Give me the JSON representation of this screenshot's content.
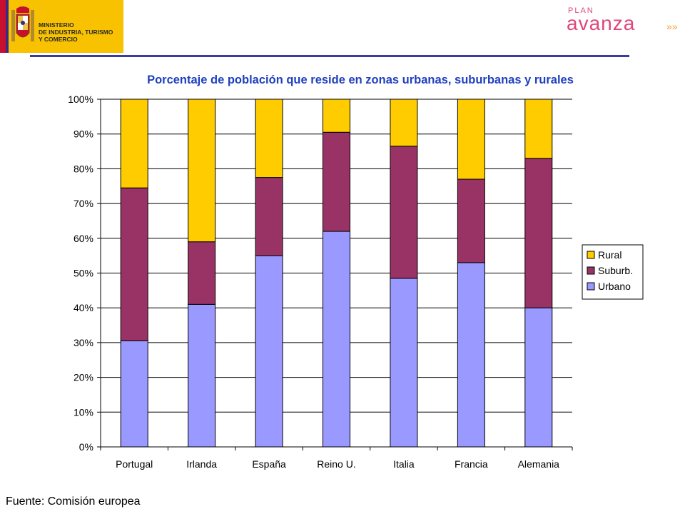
{
  "header": {
    "ministry_text": "MINISTERIO\nDE INDUSTRIA, TURISMO\nY COMERCIO",
    "plan_small": "PLAN",
    "plan_main": "avanza",
    "plan_suffix": "»»"
  },
  "source_text": "Fuente: Comisión europea",
  "colors": {
    "rural": "#ffcc00",
    "suburb": "#993366",
    "urbano": "#9999ff",
    "title": "#1f3fbf",
    "rule": "#3b3b9e"
  },
  "chart_data": {
    "type": "bar",
    "stacked": true,
    "title": "Porcentaje de población que reside en zonas urbanas, suburbanas y rurales",
    "categories": [
      "Portugal",
      "Irlanda",
      "España",
      "Reino U.",
      "Italia",
      "Francia",
      "Alemania"
    ],
    "series": [
      {
        "name": "Urbano",
        "values": [
          30.5,
          41,
          55,
          62,
          48.5,
          53,
          40
        ]
      },
      {
        "name": "Suburb.",
        "values": [
          44,
          18,
          22.5,
          28.5,
          38,
          24,
          43
        ]
      },
      {
        "name": "Rural",
        "values": [
          25.5,
          41,
          22.5,
          9.5,
          13.5,
          23,
          17
        ]
      }
    ],
    "ylim": [
      0,
      100
    ],
    "yticks": [
      "0%",
      "10%",
      "20%",
      "30%",
      "40%",
      "50%",
      "60%",
      "70%",
      "80%",
      "90%",
      "100%"
    ],
    "legend_order": [
      "Rural",
      "Suburb.",
      "Urbano"
    ],
    "legend_position": "right",
    "grid": true
  }
}
